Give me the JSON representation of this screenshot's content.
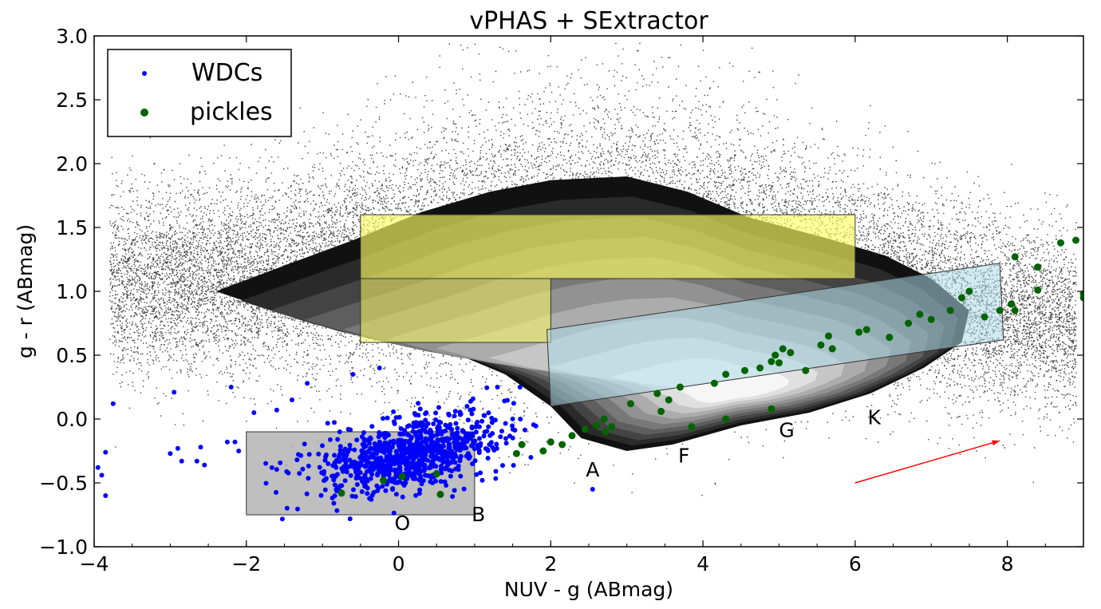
{
  "chart_data": {
    "type": "scatter",
    "title": "vPHAS + SExtractor",
    "xlabel": "NUV - g (ABmag)",
    "ylabel": "g - r (ABmag)",
    "xlim": [
      -4,
      9
    ],
    "ylim": [
      -1.0,
      3.0
    ],
    "x_ticks": [
      -4,
      -2,
      0,
      2,
      4,
      6,
      8
    ],
    "x_tick_labels": [
      "−4",
      "−2",
      "0",
      "2",
      "4",
      "6",
      "8"
    ],
    "y_ticks": [
      -1.0,
      -0.5,
      0.0,
      0.5,
      1.0,
      1.5,
      2.0,
      2.5,
      3.0
    ],
    "y_tick_labels": [
      "−1.0",
      "−0.5",
      "0.0",
      "0.5",
      "1.0",
      "1.5",
      "2.0",
      "2.5",
      "3.0"
    ],
    "grid": false,
    "legend": {
      "placement": "top-left",
      "entries": [
        {
          "label": "WDCs",
          "color": "#0000ff",
          "marker": "small-dot"
        },
        {
          "label": "pickles",
          "color": "#006400",
          "marker": "dot"
        }
      ]
    },
    "background_field_stars": {
      "color": "#000000",
      "description_visible": false
    },
    "density_contours": {
      "color_scale": [
        "#111111",
        "#2a2a2a",
        "#444444",
        "#5e5e5e",
        "#787878",
        "#929292",
        "#acacac",
        "#c6c6c6",
        "#e0e0e0",
        "#f6f6f6"
      ],
      "outer_hull": [
        [
          -2.4,
          1.0
        ],
        [
          -1.6,
          1.18
        ],
        [
          -0.6,
          1.4
        ],
        [
          0.3,
          1.62
        ],
        [
          1.2,
          1.78
        ],
        [
          2.0,
          1.87
        ],
        [
          3.0,
          1.9
        ],
        [
          3.8,
          1.78
        ],
        [
          4.6,
          1.58
        ],
        [
          5.6,
          1.42
        ],
        [
          6.4,
          1.28
        ],
        [
          7.0,
          1.1
        ],
        [
          7.5,
          0.85
        ],
        [
          7.4,
          0.6
        ],
        [
          6.9,
          0.4
        ],
        [
          6.2,
          0.2
        ],
        [
          5.4,
          0.05
        ],
        [
          4.5,
          -0.05
        ],
        [
          3.6,
          -0.2
        ],
        [
          3.0,
          -0.25
        ],
        [
          2.4,
          -0.15
        ],
        [
          2.0,
          0.1
        ],
        [
          1.4,
          0.35
        ],
        [
          0.6,
          0.55
        ],
        [
          -0.4,
          0.65
        ],
        [
          -1.4,
          0.8
        ]
      ],
      "peak": [
        4.4,
        0.2
      ]
    },
    "regions": [
      {
        "name": "yellow-upper",
        "color": "#ffff66",
        "opacity": 0.65,
        "x": [
          -0.5,
          6.0
        ],
        "y": [
          1.1,
          1.6
        ]
      },
      {
        "name": "yellow-lower",
        "color": "#ffff66",
        "opacity": 0.55,
        "x": [
          -0.5,
          2.0
        ],
        "y": [
          0.6,
          1.1
        ]
      },
      {
        "name": "gray-box",
        "color": "#aaaaaa",
        "opacity": 0.75,
        "x": [
          -2.0,
          1.0
        ],
        "y": [
          -0.75,
          -0.1
        ]
      },
      {
        "name": "lightblue-band",
        "color": "#add8e6",
        "opacity": 0.55,
        "polygon": [
          [
            1.95,
            0.7
          ],
          [
            7.9,
            1.22
          ],
          [
            7.95,
            0.62
          ],
          [
            2.0,
            0.1
          ]
        ]
      }
    ],
    "reddening_vector": {
      "color": "#ff0000",
      "from": [
        6.0,
        -0.5
      ],
      "to": [
        7.9,
        -0.17
      ]
    },
    "spectral_class_labels": [
      {
        "text": "O",
        "x": 0.05,
        "y": -0.87
      },
      {
        "text": "B",
        "x": 1.05,
        "y": -0.8
      },
      {
        "text": "A",
        "x": 2.55,
        "y": -0.45
      },
      {
        "text": "F",
        "x": 3.75,
        "y": -0.34
      },
      {
        "text": "G",
        "x": 5.1,
        "y": -0.14
      },
      {
        "text": "K",
        "x": 6.25,
        "y": -0.04
      }
    ],
    "series": [
      {
        "name": "pickles",
        "color": "#006400",
        "points": [
          [
            -0.75,
            -0.58
          ],
          [
            0.55,
            -0.59
          ],
          [
            -0.2,
            -0.48
          ],
          [
            0.05,
            -0.45
          ],
          [
            0.5,
            -0.43
          ],
          [
            1.55,
            -0.27
          ],
          [
            1.62,
            -0.2
          ],
          [
            1.9,
            -0.25
          ],
          [
            2.0,
            -0.18
          ],
          [
            2.15,
            -0.2
          ],
          [
            2.28,
            -0.13
          ],
          [
            2.45,
            -0.08
          ],
          [
            2.6,
            -0.05
          ],
          [
            2.72,
            -0.1
          ],
          [
            2.8,
            -0.06
          ],
          [
            2.7,
            0.0
          ],
          [
            3.05,
            0.12
          ],
          [
            3.4,
            0.2
          ],
          [
            3.45,
            0.06
          ],
          [
            3.55,
            0.15
          ],
          [
            3.7,
            0.25
          ],
          [
            3.85,
            -0.06
          ],
          [
            4.15,
            0.28
          ],
          [
            4.3,
            0.0
          ],
          [
            4.3,
            0.35
          ],
          [
            4.55,
            0.38
          ],
          [
            4.75,
            0.4
          ],
          [
            4.9,
            0.45
          ],
          [
            4.95,
            0.5
          ],
          [
            5.0,
            0.44
          ],
          [
            5.05,
            0.55
          ],
          [
            5.15,
            0.52
          ],
          [
            4.9,
            0.08
          ],
          [
            5.35,
            0.38
          ],
          [
            5.55,
            0.58
          ],
          [
            5.65,
            0.65
          ],
          [
            5.7,
            0.55
          ],
          [
            6.05,
            0.68
          ],
          [
            6.15,
            0.7
          ],
          [
            6.45,
            0.64
          ],
          [
            6.7,
            0.75
          ],
          [
            6.85,
            0.82
          ],
          [
            7.0,
            0.78
          ],
          [
            7.25,
            0.85
          ],
          [
            7.4,
            0.95
          ],
          [
            7.5,
            1.0
          ],
          [
            7.7,
            0.8
          ],
          [
            7.9,
            0.85
          ],
          [
            8.05,
            0.9
          ],
          [
            8.1,
            0.85
          ],
          [
            8.1,
            1.27
          ],
          [
            8.4,
            1.19
          ],
          [
            8.4,
            1.01
          ],
          [
            8.7,
            1.38
          ],
          [
            8.9,
            1.4
          ],
          [
            9.0,
            0.98
          ],
          [
            9.0,
            0.95
          ]
        ]
      }
    ]
  }
}
